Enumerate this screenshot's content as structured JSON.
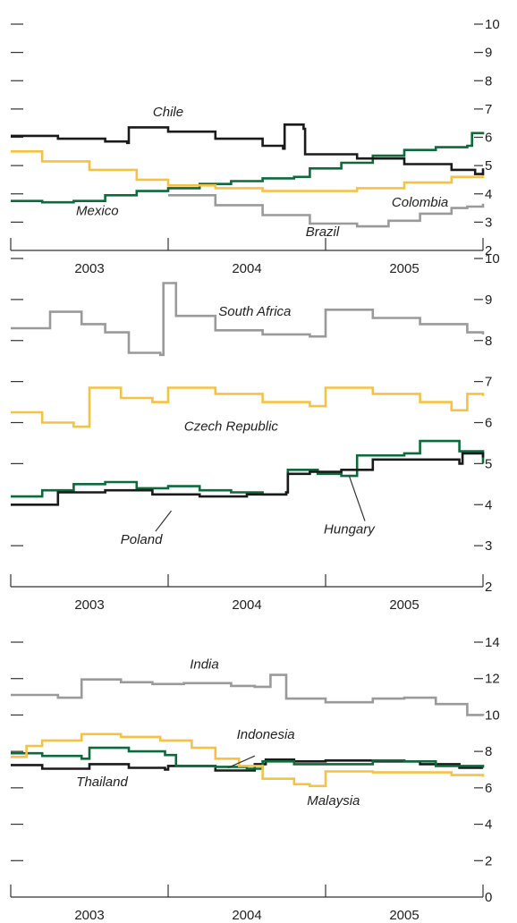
{
  "colors": {
    "black": "#1a1a1a",
    "yellow": "#f6c244",
    "green": "#0b6b3a",
    "gray": "#9a9a9a"
  },
  "chart_data": [
    {
      "type": "line",
      "years": [
        "2003",
        "2004",
        "2005"
      ],
      "xlim": [
        2003.0,
        2006.0
      ],
      "ylim": [
        2,
        10
      ],
      "yticks": [
        2,
        3,
        4,
        5,
        6,
        7,
        8,
        9,
        10
      ],
      "series": [
        {
          "name": "Chile",
          "color": "black",
          "points": [
            [
              2003.0,
              6.05
            ],
            [
              2003.3,
              5.95
            ],
            [
              2003.6,
              5.85
            ],
            [
              2003.74,
              5.8
            ],
            [
              2003.75,
              6.35
            ],
            [
              2004.0,
              6.2
            ],
            [
              2004.3,
              5.95
            ],
            [
              2004.6,
              5.7
            ],
            [
              2004.73,
              5.6
            ],
            [
              2004.74,
              6.45
            ],
            [
              2004.86,
              6.3
            ],
            [
              2004.87,
              5.4
            ],
            [
              2005.2,
              5.25
            ],
            [
              2005.5,
              5.05
            ],
            [
              2005.8,
              4.85
            ],
            [
              2005.95,
              4.7
            ],
            [
              2006.0,
              4.9
            ]
          ]
        },
        {
          "name": "Colombia",
          "color": "yellow",
          "points": [
            [
              2003.0,
              5.5
            ],
            [
              2003.2,
              5.15
            ],
            [
              2003.5,
              4.85
            ],
            [
              2003.8,
              4.5
            ],
            [
              2004.0,
              4.3
            ],
            [
              2004.3,
              4.2
            ],
            [
              2004.6,
              4.1
            ],
            [
              2004.9,
              4.1
            ],
            [
              2005.2,
              4.2
            ],
            [
              2005.5,
              4.4
            ],
            [
              2005.8,
              4.6
            ],
            [
              2006.0,
              4.75
            ]
          ]
        },
        {
          "name": "Mexico",
          "color": "green",
          "points": [
            [
              2003.0,
              3.75
            ],
            [
              2003.2,
              3.7
            ],
            [
              2003.4,
              3.75
            ],
            [
              2003.6,
              3.95
            ],
            [
              2003.8,
              4.1
            ],
            [
              2004.0,
              4.2
            ],
            [
              2004.2,
              4.35
            ],
            [
              2004.4,
              4.45
            ],
            [
              2004.6,
              4.55
            ],
            [
              2004.8,
              4.6
            ],
            [
              2004.9,
              4.9
            ],
            [
              2005.1,
              5.1
            ],
            [
              2005.3,
              5.35
            ],
            [
              2005.5,
              5.55
            ],
            [
              2005.7,
              5.65
            ],
            [
              2005.9,
              5.7
            ],
            [
              2005.93,
              6.15
            ],
            [
              2006.0,
              6.1
            ]
          ]
        },
        {
          "name": "Brazil",
          "color": "gray",
          "points": [
            [
              2004.0,
              3.95
            ],
            [
              2004.3,
              3.6
            ],
            [
              2004.6,
              3.25
            ],
            [
              2004.9,
              2.95
            ],
            [
              2005.2,
              2.85
            ],
            [
              2005.4,
              3.05
            ],
            [
              2005.6,
              3.3
            ],
            [
              2005.8,
              3.5
            ],
            [
              2005.9,
              3.55
            ],
            [
              2006.0,
              3.65
            ]
          ]
        }
      ],
      "annotations": [
        {
          "text": "Chile",
          "x": 2004.0,
          "y": 6.75
        },
        {
          "text": "Colombia",
          "x": 2005.6,
          "y": 3.55
        },
        {
          "text": "Mexico",
          "x": 2003.55,
          "y": 3.25
        },
        {
          "text": "Brazil",
          "x": 2004.98,
          "y": 2.5
        }
      ]
    },
    {
      "type": "line",
      "years": [
        "2003",
        "2004",
        "2005"
      ],
      "xlim": [
        2003.0,
        2006.0
      ],
      "ylim": [
        2,
        10
      ],
      "yticks": [
        2,
        3,
        4,
        5,
        6,
        7,
        8,
        9,
        10
      ],
      "series": [
        {
          "name": "South Africa",
          "color": "gray",
          "points": [
            [
              2003.0,
              8.3
            ],
            [
              2003.25,
              8.7
            ],
            [
              2003.45,
              8.4
            ],
            [
              2003.6,
              8.2
            ],
            [
              2003.75,
              7.7
            ],
            [
              2003.95,
              7.65
            ],
            [
              2003.97,
              9.4
            ],
            [
              2004.05,
              8.6
            ],
            [
              2004.3,
              8.25
            ],
            [
              2004.6,
              8.15
            ],
            [
              2004.9,
              8.1
            ],
            [
              2005.0,
              8.75
            ],
            [
              2005.3,
              8.55
            ],
            [
              2005.6,
              8.4
            ],
            [
              2005.9,
              8.2
            ],
            [
              2006.0,
              8.15
            ]
          ]
        },
        {
          "name": "Czech Republic",
          "color": "yellow",
          "points": [
            [
              2003.0,
              6.25
            ],
            [
              2003.2,
              6.0
            ],
            [
              2003.4,
              5.9
            ],
            [
              2003.5,
              6.85
            ],
            [
              2003.7,
              6.6
            ],
            [
              2003.9,
              6.5
            ],
            [
              2004.0,
              6.85
            ],
            [
              2004.3,
              6.7
            ],
            [
              2004.6,
              6.5
            ],
            [
              2004.9,
              6.4
            ],
            [
              2005.0,
              6.85
            ],
            [
              2005.3,
              6.7
            ],
            [
              2005.6,
              6.5
            ],
            [
              2005.8,
              6.3
            ],
            [
              2005.9,
              6.7
            ],
            [
              2006.0,
              6.65
            ]
          ]
        },
        {
          "name": "Poland",
          "color": "black",
          "points": [
            [
              2003.0,
              4.0
            ],
            [
              2003.3,
              4.3
            ],
            [
              2003.6,
              4.35
            ],
            [
              2003.9,
              4.25
            ],
            [
              2004.2,
              4.2
            ],
            [
              2004.5,
              4.25
            ],
            [
              2004.75,
              4.3
            ],
            [
              2004.76,
              4.75
            ],
            [
              2004.9,
              4.8
            ],
            [
              2005.1,
              4.85
            ],
            [
              2005.3,
              5.1
            ],
            [
              2005.6,
              5.1
            ],
            [
              2005.85,
              5.0
            ],
            [
              2005.87,
              5.25
            ],
            [
              2006.0,
              5.15
            ]
          ]
        },
        {
          "name": "Hungary",
          "color": "green",
          "points": [
            [
              2003.0,
              4.2
            ],
            [
              2003.2,
              4.35
            ],
            [
              2003.4,
              4.5
            ],
            [
              2003.6,
              4.55
            ],
            [
              2003.8,
              4.4
            ],
            [
              2004.0,
              4.45
            ],
            [
              2004.2,
              4.35
            ],
            [
              2004.4,
              4.3
            ],
            [
              2004.6,
              4.25
            ],
            [
              2004.75,
              4.3
            ],
            [
              2004.76,
              4.85
            ],
            [
              2004.95,
              4.75
            ],
            [
              2005.1,
              4.7
            ],
            [
              2005.2,
              5.2
            ],
            [
              2005.5,
              5.25
            ],
            [
              2005.6,
              5.55
            ],
            [
              2005.85,
              5.3
            ],
            [
              2006.0,
              5.0
            ]
          ]
        }
      ],
      "annotations": [
        {
          "text": "South Africa",
          "x": 2004.55,
          "y": 8.6
        },
        {
          "text": "Czech Republic",
          "x": 2004.4,
          "y": 5.8
        },
        {
          "text": "Poland",
          "x": 2003.83,
          "y": 3.05
        },
        {
          "text": "Hungary",
          "x": 2005.15,
          "y": 3.3
        }
      ]
    },
    {
      "type": "line",
      "years": [
        "2003",
        "2004",
        "2005"
      ],
      "xlim": [
        2003.0,
        2006.0
      ],
      "ylim": [
        0,
        14
      ],
      "yticks": [
        0,
        2,
        4,
        6,
        8,
        10,
        12,
        14
      ],
      "series": [
        {
          "name": "India",
          "color": "gray",
          "points": [
            [
              2003.0,
              11.1
            ],
            [
              2003.3,
              10.95
            ],
            [
              2003.45,
              11.95
            ],
            [
              2003.7,
              11.8
            ],
            [
              2003.9,
              11.7
            ],
            [
              2004.1,
              11.75
            ],
            [
              2004.4,
              11.6
            ],
            [
              2004.55,
              11.55
            ],
            [
              2004.65,
              12.2
            ],
            [
              2004.75,
              10.9
            ],
            [
              2005.0,
              10.7
            ],
            [
              2005.3,
              10.9
            ],
            [
              2005.5,
              10.95
            ],
            [
              2005.7,
              10.6
            ],
            [
              2005.9,
              10.0
            ],
            [
              2006.0,
              9.95
            ]
          ]
        },
        {
          "name": "Indonesia",
          "color": "yellow",
          "points": [
            [
              2003.0,
              7.7
            ],
            [
              2003.1,
              8.3
            ],
            [
              2003.2,
              8.6
            ],
            [
              2003.45,
              8.95
            ],
            [
              2003.7,
              8.8
            ],
            [
              2003.95,
              8.6
            ],
            [
              2004.15,
              8.2
            ],
            [
              2004.3,
              7.6
            ],
            [
              2004.45,
              7.2
            ],
            [
              2004.6,
              6.5
            ],
            [
              2004.8,
              6.2
            ],
            [
              2004.9,
              6.1
            ],
            [
              2005.0,
              6.9
            ],
            [
              2005.3,
              6.85
            ],
            [
              2005.6,
              6.85
            ],
            [
              2005.8,
              6.7
            ],
            [
              2006.0,
              6.6
            ]
          ]
        },
        {
          "name": "Malaysia",
          "color": "green",
          "points": [
            [
              2003.0,
              7.9
            ],
            [
              2003.2,
              7.75
            ],
            [
              2003.45,
              7.6
            ],
            [
              2003.5,
              8.2
            ],
            [
              2003.75,
              8.0
            ],
            [
              2003.98,
              7.8
            ],
            [
              2004.05,
              7.2
            ],
            [
              2004.3,
              7.15
            ],
            [
              2004.5,
              7.05
            ],
            [
              2004.6,
              7.45
            ],
            [
              2004.8,
              7.3
            ],
            [
              2005.0,
              7.3
            ],
            [
              2005.3,
              7.5
            ],
            [
              2005.5,
              7.45
            ],
            [
              2005.7,
              7.2
            ],
            [
              2006.0,
              7.1
            ]
          ]
        },
        {
          "name": "Thailand",
          "color": "black",
          "points": [
            [
              2003.0,
              7.25
            ],
            [
              2003.2,
              7.05
            ],
            [
              2003.4,
              7.05
            ],
            [
              2003.5,
              7.3
            ],
            [
              2003.75,
              7.1
            ],
            [
              2003.98,
              7.0
            ],
            [
              2004.0,
              7.2
            ],
            [
              2004.3,
              6.95
            ],
            [
              2004.45,
              6.95
            ],
            [
              2004.55,
              7.3
            ],
            [
              2004.62,
              7.55
            ],
            [
              2004.8,
              7.45
            ],
            [
              2005.0,
              7.5
            ],
            [
              2005.3,
              7.45
            ],
            [
              2005.6,
              7.3
            ],
            [
              2005.85,
              7.1
            ],
            [
              2006.0,
              7.1
            ]
          ]
        }
      ],
      "annotations": [
        {
          "text": "India",
          "x": 2004.23,
          "y": 12.55
        },
        {
          "text": "Indonesia",
          "x": 2004.62,
          "y": 8.7
        },
        {
          "text": "Thailand",
          "x": 2003.58,
          "y": 6.1
        },
        {
          "text": "Malaysia",
          "x": 2005.05,
          "y": 5.05
        }
      ]
    }
  ]
}
